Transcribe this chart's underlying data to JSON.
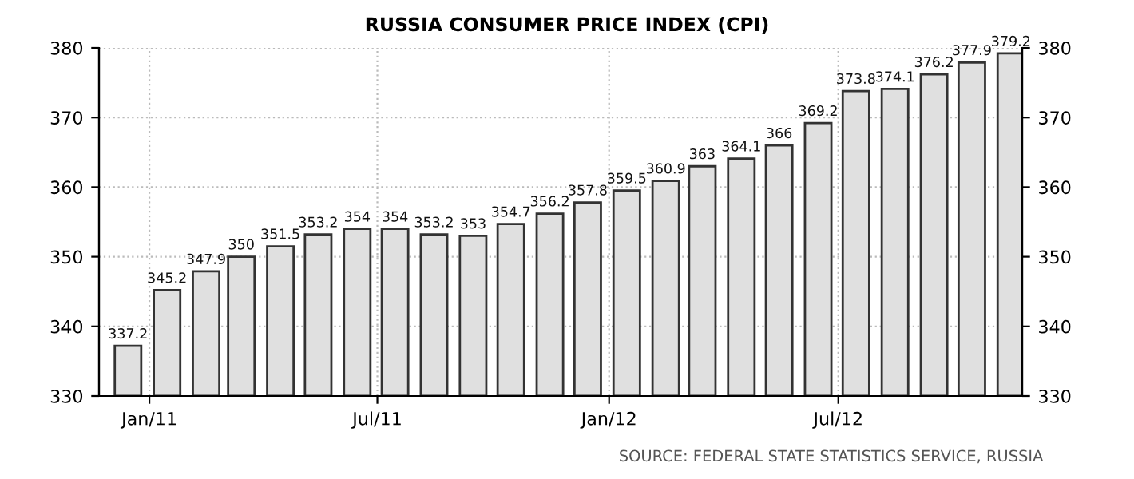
{
  "chart_data": {
    "type": "bar",
    "title": "RUSSIA CONSUMER PRICE INDEX (CPI)",
    "x": [
      "2010-12-15",
      "2011-01-15",
      "2011-02-15",
      "2011-03-15",
      "2011-04-15",
      "2011-05-15",
      "2011-06-15",
      "2011-07-15",
      "2011-08-15",
      "2011-09-15",
      "2011-10-15",
      "2011-11-15",
      "2011-12-15",
      "2012-01-15",
      "2012-02-15",
      "2012-03-15",
      "2012-04-15",
      "2012-05-15",
      "2012-06-15",
      "2012-07-15",
      "2012-08-15",
      "2012-09-15",
      "2012-10-15",
      "2012-11-15"
    ],
    "values": [
      337.2,
      345.2,
      347.9,
      350,
      351.5,
      353.2,
      354,
      354,
      353.2,
      353,
      354.7,
      356.2,
      357.8,
      359.5,
      360.9,
      363,
      364.1,
      366,
      369.2,
      373.8,
      374.1,
      376.2,
      377.9,
      379.2
    ],
    "color": "#e0e0e0",
    "data_labels": true,
    "xlim": [
      "2010-11-22",
      "2012-11-24"
    ],
    "xticks": [
      {
        "value": "2011-01-01",
        "label": "Jan/11"
      },
      {
        "value": "2011-07-01",
        "label": "Jul/11"
      },
      {
        "value": "2012-01-01",
        "label": "Jan/12"
      },
      {
        "value": "2012-07-01",
        "label": "Jul/12"
      }
    ],
    "ylim": [
      330,
      380
    ],
    "yticks": [
      330,
      340,
      350,
      360,
      370,
      380
    ],
    "y2lim": [
      330,
      380
    ],
    "y2ticks": [
      330,
      340,
      350,
      360,
      370,
      380
    ],
    "grid": true,
    "annotations": [
      "SOURCE: FEDERAL STATE STATISTICS SERVICE, RUSSIA"
    ]
  }
}
